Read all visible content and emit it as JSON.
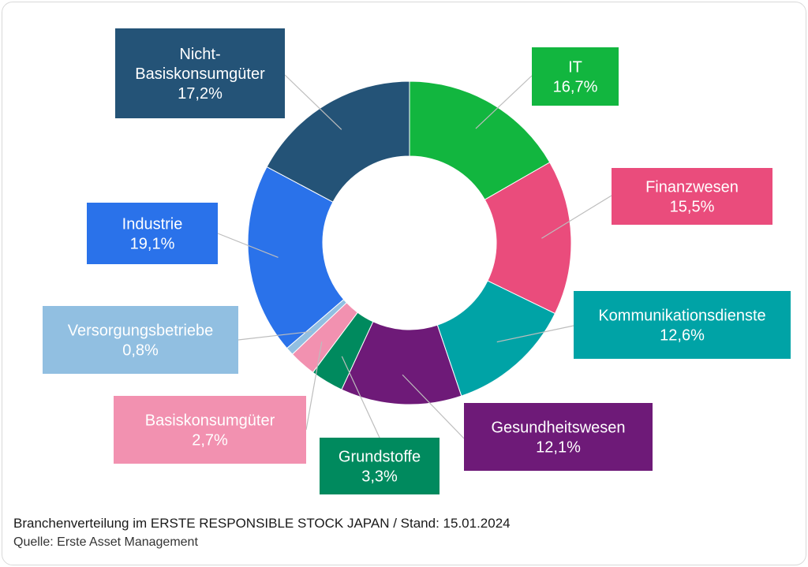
{
  "chart_data": {
    "type": "pie",
    "donut": true,
    "series": [
      {
        "name": "IT",
        "label": "16,7%",
        "value": 16.7,
        "color": "#12b63f"
      },
      {
        "name": "Finanzwesen",
        "label": "15,5%",
        "value": 15.5,
        "color": "#ea4c7c"
      },
      {
        "name": "Kommunikationsdienste",
        "label": "12,6%",
        "value": 12.6,
        "color": "#00a3a6"
      },
      {
        "name": "Gesundheitswesen",
        "label": "12,1%",
        "value": 12.1,
        "color": "#6e1a78"
      },
      {
        "name": "Grundstoffe",
        "label": "3,3%",
        "value": 3.3,
        "color": "#008a5e"
      },
      {
        "name": "Basiskonsumgüter",
        "label": "2,7%",
        "value": 2.7,
        "color": "#f291b0"
      },
      {
        "name": "Versorgungsbetriebe",
        "label": "0,8%",
        "value": 0.8,
        "color": "#91bfe1"
      },
      {
        "name": "Industrie",
        "label": "19,1%",
        "value": 19.1,
        "color": "#2a72ea"
      },
      {
        "name": "Nicht-\nBasiskonsumgüter",
        "label": "17,2%",
        "value": 17.2,
        "color": "#245377"
      }
    ]
  },
  "caption": {
    "title": "Branchenverteilung im ERSTE RESPONSIBLE STOCK JAPAN / Stand: 15.01.2024",
    "source": "Quelle: Erste Asset Management"
  }
}
